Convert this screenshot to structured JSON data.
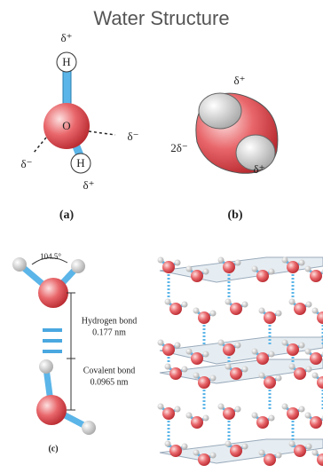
{
  "header": {
    "title": "Water Structure"
  },
  "panel_a": {
    "hydrogen_top": "H",
    "oxygen": "O",
    "hydrogen_bottom": "H",
    "charge_top": "δ⁺",
    "charge_left": "δ⁻",
    "charge_right": "δ⁻",
    "charge_bottom": "δ⁺",
    "caption": "(a)"
  },
  "panel_b": {
    "charge_top": "δ⁺",
    "charge_left": "2δ⁻",
    "charge_bottom": "δ⁺",
    "caption": "(b)"
  },
  "panel_c": {
    "angle": "104.5°",
    "hydrogen_bond": "Hydrogen bond",
    "hydrogen_bond_length": "0.177 nm",
    "covalent_bond": "Covalent bond",
    "covalent_bond_length": "0.0965 nm",
    "caption": "(c)"
  }
}
